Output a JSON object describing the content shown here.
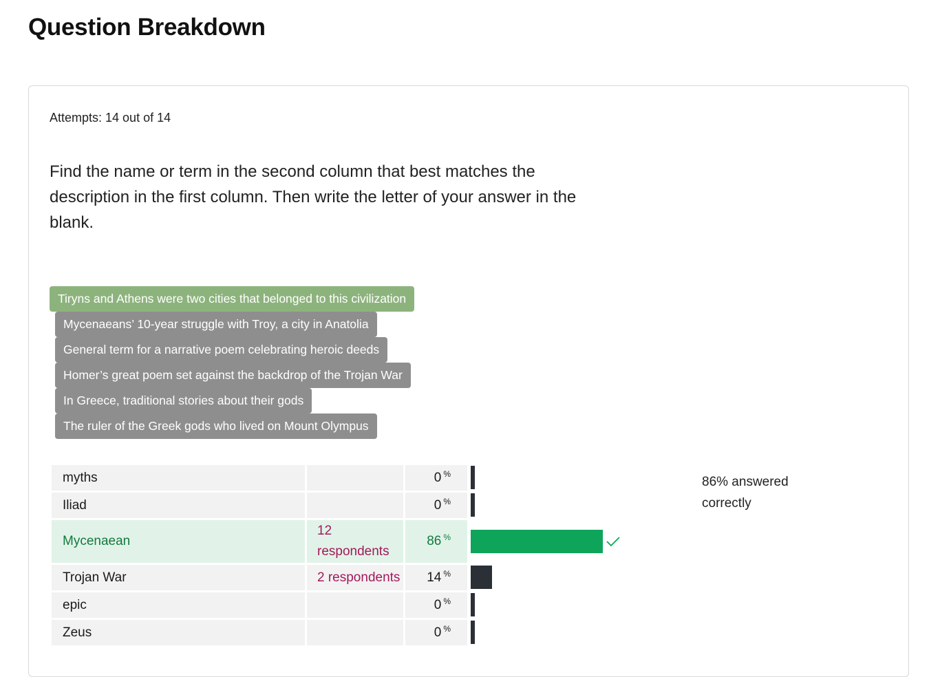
{
  "page": {
    "title": "Question Breakdown"
  },
  "card": {
    "attempts": "Attempts: 14 out of 14",
    "question": "Find the name or term in the second column that best matches the description in the first column. Then write the letter of your answer in the blank."
  },
  "prompts": [
    {
      "text": "Tiryns and Athens were two cities that belonged to this civilization",
      "state": "correct"
    },
    {
      "text": "Mycenaeans’ 10-year struggle with Troy, a city in Anatolia",
      "state": "other"
    },
    {
      "text": "General term for a narrative poem celebrating heroic deeds",
      "state": "other"
    },
    {
      "text": "Homer’s great poem set against the backdrop of the Trojan War",
      "state": "other"
    },
    {
      "text": "In Greece, traditional stories about their gods",
      "state": "other"
    },
    {
      "text": "The ruler of the Greek gods who lived on Mount Olympus",
      "state": "other"
    }
  ],
  "answers": [
    {
      "term": "myths",
      "respondents": "",
      "percent": "0",
      "value": 0,
      "correct": false
    },
    {
      "term": "Iliad",
      "respondents": "",
      "percent": "0",
      "value": 0,
      "correct": false
    },
    {
      "term": "Mycenaean",
      "respondents": "12 respondents",
      "percent": "86",
      "value": 86,
      "correct": true
    },
    {
      "term": "Trojan War",
      "respondents": "2 respondents",
      "percent": "14",
      "value": 14,
      "correct": false
    },
    {
      "term": "epic",
      "respondents": "",
      "percent": "0",
      "value": 0,
      "correct": false
    },
    {
      "term": "Zeus",
      "respondents": "",
      "percent": "0",
      "value": 0,
      "correct": false
    }
  ],
  "percent_sign": "%",
  "summary": "86% answered correctly",
  "colors": {
    "correct_bar": "#0ea45a",
    "other_bar": "#2b2f36",
    "respondents_text": "#a3195b"
  },
  "icons": {
    "correct_marker": "checkmark-icon"
  }
}
